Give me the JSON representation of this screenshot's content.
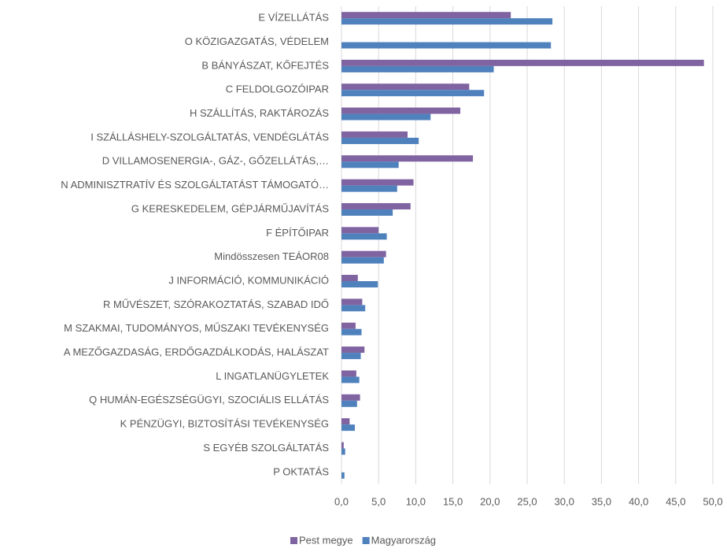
{
  "chart_data": {
    "type": "bar",
    "orientation": "horizontal",
    "categories": [
      "E  VÍZELLÁTÁS",
      "O  KÖZIGAZGATÁS, VÉDELEM",
      "B  BÁNYÁSZAT, KŐFEJTÉS",
      "C  FELDOLGOZÓIPAR",
      "H  SZÁLLÍTÁS, RAKTÁROZÁS",
      "I  SZÁLLÁSHELY-SZOLGÁLTATÁS, VENDÉGLÁTÁS",
      "D  VILLAMOSENERGIA-, GÁZ-, GŐZELLÁTÁS,…",
      "N  ADMINISZTRATÍV ÉS SZOLGÁLTATÁST TÁMOGATÓ…",
      "G  KERESKEDELEM, GÉPJÁRMŰJAVÍTÁS",
      "F  ÉPÍTŐIPAR",
      "Mindösszesen TEÁOR08",
      "J  INFORMÁCIÓ, KOMMUNIKÁCIÓ",
      "R  MŰVÉSZET, SZÓRAKOZTATÁS, SZABAD IDŐ",
      "M  SZAKMAI, TUDOMÁNYOS, MŰSZAKI TEVÉKENYSÉG",
      "A  MEZŐGAZDASÁG, ERDŐGAZDÁLKODÁS, HALÁSZAT",
      "L  INGATLANÜGYLETEK",
      "Q  HUMÁN-EGÉSZSÉGÜGYI, SZOCIÁLIS ELLÁTÁS",
      "K  PÉNZÜGYI, BIZTOSÍTÁSI TEVÉKENYSÉG",
      "S  EGYÉB SZOLGÁLTATÁS",
      "P  OKTATÁS"
    ],
    "series": [
      {
        "name": "Pest megye",
        "color": "#8064a2",
        "values": [
          22.8,
          0,
          48.8,
          17.2,
          16.0,
          8.9,
          17.7,
          9.7,
          9.3,
          5.0,
          6.0,
          2.2,
          2.8,
          1.9,
          3.1,
          2.0,
          2.5,
          1.1,
          0.3,
          0
        ]
      },
      {
        "name": "Magyarország",
        "color": "#4f81bd",
        "values": [
          28.4,
          28.2,
          20.5,
          19.2,
          12.0,
          10.4,
          7.7,
          7.5,
          6.9,
          6.1,
          5.7,
          4.9,
          3.2,
          2.7,
          2.6,
          2.4,
          2.1,
          1.8,
          0.5,
          0.4
        ]
      }
    ],
    "xlim": [
      0,
      50
    ],
    "xticks": [
      {
        "value": 0,
        "label": "0,0"
      },
      {
        "value": 5,
        "label": "5,0"
      },
      {
        "value": 10,
        "label": "10,0"
      },
      {
        "value": 15,
        "label": "15,0"
      },
      {
        "value": 20,
        "label": "20,0"
      },
      {
        "value": 25,
        "label": "25,0"
      },
      {
        "value": 30,
        "label": "30,0"
      },
      {
        "value": 35,
        "label": "35,0"
      },
      {
        "value": 40,
        "label": "40,0"
      },
      {
        "value": 45,
        "label": "45,0"
      },
      {
        "value": 50,
        "label": "50,0"
      }
    ],
    "grid": true,
    "legend": "bottom"
  }
}
